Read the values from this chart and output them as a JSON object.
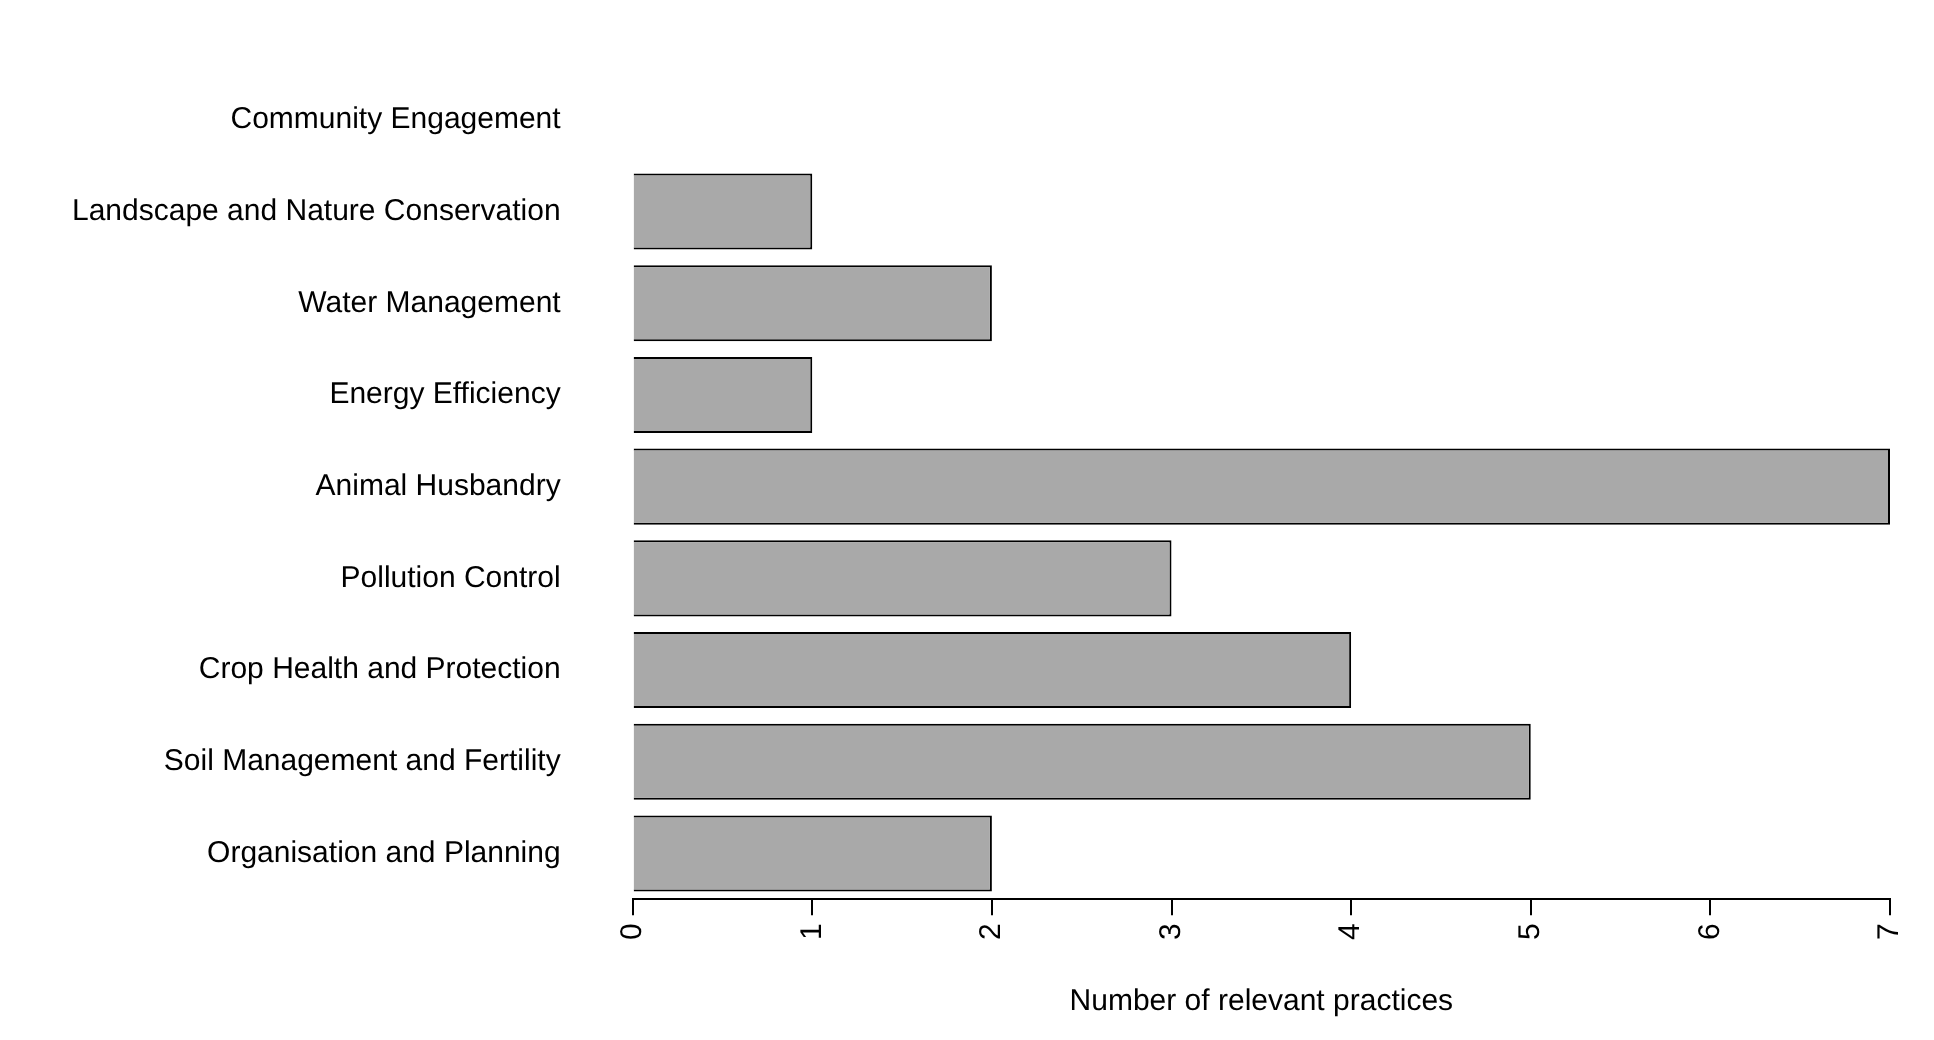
{
  "chart_data": {
    "type": "bar",
    "orientation": "horizontal",
    "xlabel": "Number of relevant practices",
    "categories": [
      "Community Engagement",
      "Landscape and Nature Conservation",
      "Water Management",
      "Energy Efficiency",
      "Animal Husbandry",
      "Pollution Control",
      "Crop Health and Protection",
      "Soil Management and Fertility",
      "Organisation and Planning"
    ],
    "values": [
      0,
      1,
      2,
      1,
      7,
      3,
      4,
      5,
      2
    ],
    "color": "#a9a9a9",
    "xlim": [
      0,
      7
    ],
    "xticks": [
      0,
      1,
      2,
      3,
      4,
      5,
      6,
      7
    ],
    "grid": false,
    "legend": false
  }
}
